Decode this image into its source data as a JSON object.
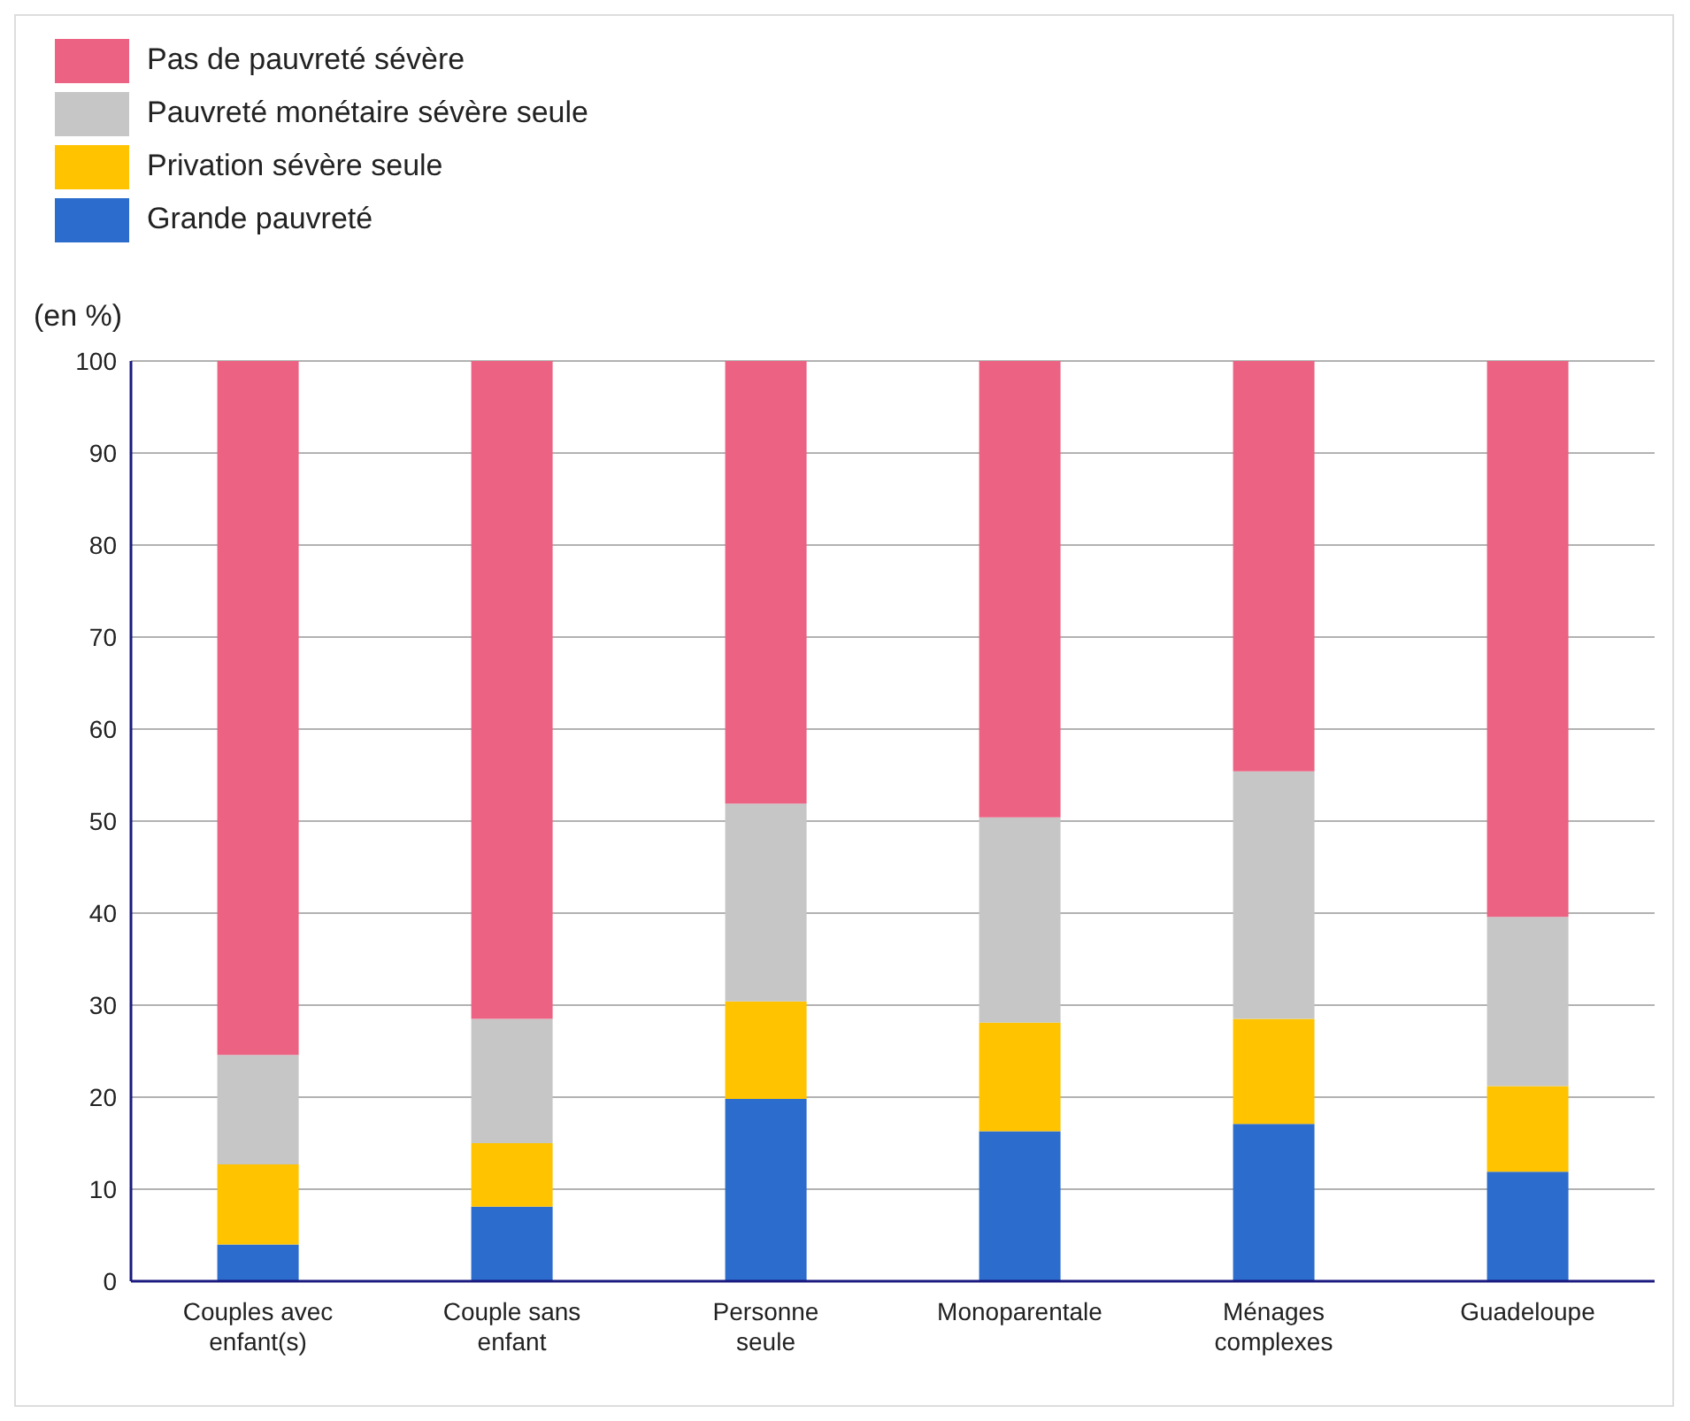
{
  "chart_data": {
    "type": "bar",
    "stacked": true,
    "ylabel": "(en %)",
    "categories": [
      "Couples avec enfant(s)",
      "Couple sans enfant",
      "Personne seule",
      "Monoparentale",
      "Ménages complexes",
      "Guadeloupe"
    ],
    "series": [
      {
        "name": "Grande pauvreté",
        "color": "#2b6ccc",
        "values": [
          4.0,
          8.1,
          19.8,
          16.3,
          17.1,
          11.9
        ]
      },
      {
        "name": "Privation sévère seule",
        "color": "#ffc300",
        "values": [
          8.7,
          6.9,
          10.6,
          11.8,
          11.4,
          9.3
        ]
      },
      {
        "name": "Pauvreté monétaire sévère seule",
        "color": "#c6c6c6",
        "values": [
          11.9,
          13.5,
          21.5,
          22.3,
          26.9,
          18.4
        ]
      },
      {
        "name": "Pas de pauvreté sévère",
        "color": "#ec6282",
        "values": [
          75.4,
          71.5,
          48.1,
          49.6,
          44.6,
          60.4
        ]
      }
    ],
    "ylim": [
      0,
      100
    ],
    "yticks": [
      0,
      10,
      20,
      30,
      40,
      50,
      60,
      70,
      80,
      90,
      100
    ],
    "grid": "y",
    "legend": "top left"
  }
}
